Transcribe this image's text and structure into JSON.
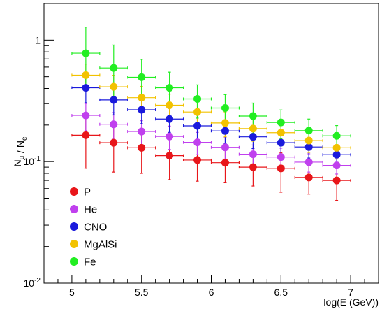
{
  "chart_data": {
    "type": "scatter",
    "xlabel": "log(E (GeV))",
    "ylabel": "N_u / N_e",
    "xlim": [
      4.8,
      7.2
    ],
    "ylim": [
      0.01,
      2.0
    ],
    "yscale": "log",
    "x_ticks": [
      5,
      5.5,
      6,
      6.5,
      7
    ],
    "x_tick_labels": [
      "5",
      "5.5",
      "6",
      "6.5",
      "7"
    ],
    "y_ticks": [
      0.01,
      0.1,
      1
    ],
    "y_tick_labels": [
      "10-2",
      "10-1",
      "1"
    ],
    "legend_position": "bottom-left",
    "x": [
      5.1,
      5.3,
      5.5,
      5.7,
      5.9,
      6.1,
      6.3,
      6.5,
      6.7,
      6.9
    ],
    "x_error": 0.1,
    "series": [
      {
        "name": "P",
        "color": "#e8161a",
        "values": [
          0.165,
          0.143,
          0.13,
          0.112,
          0.103,
          0.098,
          0.09,
          0.088,
          0.074,
          0.07
        ],
        "err_low": [
          0.077,
          0.061,
          0.05,
          0.041,
          0.034,
          0.031,
          0.027,
          0.032,
          0.02,
          0.022
        ],
        "err_high": [
          0.071,
          0.057,
          0.048,
          0.042,
          0.038,
          0.033,
          0.032,
          0.03,
          0.023,
          0.02
        ]
      },
      {
        "name": "He",
        "color": "#c040ee",
        "values": [
          0.24,
          0.203,
          0.177,
          0.161,
          0.144,
          0.131,
          0.115,
          0.109,
          0.099,
          0.093
        ],
        "err_low": [
          0.06,
          0.05,
          0.04,
          0.035,
          0.03,
          0.026,
          0.022,
          0.02,
          0.017,
          0.014
        ],
        "err_high": [
          0.06,
          0.05,
          0.04,
          0.035,
          0.03,
          0.026,
          0.022,
          0.02,
          0.017,
          0.014
        ]
      },
      {
        "name": "CNO",
        "color": "#1a1adc",
        "values": [
          0.405,
          0.322,
          0.267,
          0.224,
          0.197,
          0.179,
          0.16,
          0.143,
          0.132,
          0.114
        ],
        "err_low": [
          0.1,
          0.08,
          0.062,
          0.05,
          0.044,
          0.038,
          0.032,
          0.028,
          0.025,
          0.02
        ],
        "err_high": [
          0.1,
          0.08,
          0.062,
          0.05,
          0.044,
          0.038,
          0.032,
          0.028,
          0.025,
          0.02
        ]
      },
      {
        "name": "MgAlSi",
        "color": "#f2c200",
        "values": [
          0.515,
          0.413,
          0.336,
          0.291,
          0.256,
          0.208,
          0.187,
          0.173,
          0.149,
          0.13
        ],
        "err_low": [
          0.12,
          0.1,
          0.08,
          0.068,
          0.058,
          0.048,
          0.04,
          0.036,
          0.03,
          0.025
        ],
        "err_high": [
          0.12,
          0.1,
          0.08,
          0.068,
          0.058,
          0.048,
          0.04,
          0.036,
          0.03,
          0.025
        ]
      },
      {
        "name": "Fe",
        "color": "#22ee22",
        "values": [
          0.78,
          0.59,
          0.495,
          0.405,
          0.328,
          0.276,
          0.237,
          0.21,
          0.18,
          0.163
        ],
        "err_low": [
          0.35,
          0.25,
          0.17,
          0.13,
          0.1,
          0.08,
          0.066,
          0.056,
          0.044,
          0.035
        ],
        "err_high": [
          0.5,
          0.32,
          0.2,
          0.14,
          0.1,
          0.08,
          0.066,
          0.056,
          0.044,
          0.035
        ]
      }
    ]
  }
}
